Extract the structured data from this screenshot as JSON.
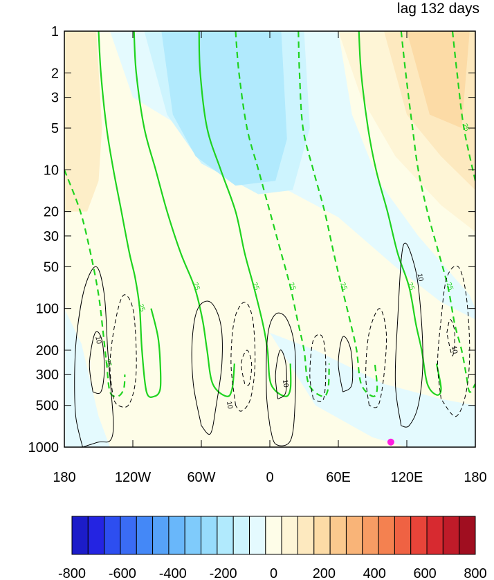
{
  "title": "lag 132 days",
  "colors": {
    "zero_line_green": "#1fd31f",
    "contour_black": "#000000",
    "marker": "#ff1ee0",
    "frame": "#000000"
  },
  "chart_data": {
    "type": "heatmap",
    "title": "lag 132 days",
    "x_axis": {
      "label": "",
      "range": [
        -180,
        180
      ],
      "ticks": [
        {
          "value": -180,
          "label": "180"
        },
        {
          "value": -120,
          "label": "120W"
        },
        {
          "value": -60,
          "label": "60W"
        },
        {
          "value": 0,
          "label": "0"
        },
        {
          "value": 60,
          "label": "60E"
        },
        {
          "value": 120,
          "label": "120E"
        },
        {
          "value": 180,
          "label": "180"
        }
      ]
    },
    "y_axis": {
      "label": "",
      "scale": "log",
      "reversed": true,
      "range": [
        1000,
        1
      ],
      "ticks": [
        {
          "value": 1,
          "label": "1"
        },
        {
          "value": 2,
          "label": "2"
        },
        {
          "value": 3,
          "label": "3"
        },
        {
          "value": 5,
          "label": "5"
        },
        {
          "value": 10,
          "label": "10"
        },
        {
          "value": 20,
          "label": "20"
        },
        {
          "value": 30,
          "label": "30"
        },
        {
          "value": 50,
          "label": "50"
        },
        {
          "value": 100,
          "label": "100"
        },
        {
          "value": 200,
          "label": "200"
        },
        {
          "value": 300,
          "label": "300"
        },
        {
          "value": 500,
          "label": "500"
        },
        {
          "value": 1000,
          "label": "1000"
        }
      ]
    },
    "colorbar": {
      "range": [
        -800,
        800
      ],
      "labels": [
        {
          "value": -800,
          "label": "-800"
        },
        {
          "value": -600,
          "label": "-600"
        },
        {
          "value": -400,
          "label": "-400"
        },
        {
          "value": -200,
          "label": "-200"
        },
        {
          "value": 0,
          "label": "0"
        },
        {
          "value": 200,
          "label": "200"
        },
        {
          "value": 400,
          "label": "400"
        },
        {
          "value": 600,
          "label": "600"
        },
        {
          "value": 800,
          "label": "800"
        }
      ],
      "colors": [
        "#1c1cc9",
        "#2424e2",
        "#2d4ef0",
        "#3a6cf4",
        "#4488f7",
        "#56a2f8",
        "#69b7fa",
        "#7fcbfb",
        "#97dcfc",
        "#b1eafd",
        "#cdf4fe",
        "#e4fafe",
        "#fefde8",
        "#fef5d6",
        "#fde9bf",
        "#fcdba6",
        "#fbc98e",
        "#f9b478",
        "#f79c64",
        "#f48150",
        "#ef6243",
        "#e84439",
        "#d72a30",
        "#bf1b29",
        "#a00e20"
      ]
    },
    "shaded_field": [
      {
        "lon": -180,
        "pressure": 2,
        "value": 120
      },
      {
        "lon": -60,
        "pressure": 3,
        "value": -180
      },
      {
        "lon": 120,
        "pressure": 3,
        "value": 130
      },
      {
        "lon": -40,
        "pressure": 100,
        "value": 20
      },
      {
        "lon": -160,
        "pressure": 300,
        "value": -20
      },
      {
        "lon": 80,
        "pressure": 300,
        "value": -20
      },
      {
        "lon": 100,
        "pressure": 1000,
        "value": 20
      }
    ],
    "green_contour_label": "25",
    "black_contour_label": "10",
    "green_contours": [
      {
        "style": "dashed",
        "points": [
          [
            -180,
            10
          ],
          [
            -166,
            20
          ],
          [
            -157,
            40
          ],
          [
            -150,
            80
          ],
          [
            -146,
            150
          ],
          [
            -143,
            250
          ],
          [
            -140,
            400
          ],
          [
            -133,
            430
          ],
          [
            -128,
            380
          ],
          [
            -127,
            300
          ]
        ]
      },
      {
        "style": "solid",
        "points": [
          [
            -150,
            1
          ],
          [
            -148,
            2
          ],
          [
            -143,
            5
          ],
          [
            -137,
            10
          ],
          [
            -130,
            20
          ],
          [
            -123,
            40
          ],
          [
            -118,
            60
          ],
          [
            -114,
            100
          ],
          [
            -112,
            200
          ],
          [
            -108,
            400
          ],
          [
            -101,
            430
          ],
          [
            -96,
            380
          ],
          [
            -96,
            250
          ],
          [
            -98,
            160
          ],
          [
            -104,
            100
          ]
        ]
      },
      {
        "style": "solid",
        "points": [
          [
            -119,
            1
          ],
          [
            -117,
            2
          ],
          [
            -110,
            5
          ],
          [
            -100,
            10
          ],
          [
            -90,
            20
          ],
          [
            -78,
            40
          ],
          [
            -66,
            70
          ],
          [
            -59,
            120
          ],
          [
            -55,
            200
          ],
          [
            -50,
            350
          ],
          [
            -38,
            430
          ],
          [
            -33,
            380
          ],
          [
            -31,
            250
          ]
        ]
      },
      {
        "style": "solid",
        "points": [
          [
            -62,
            1
          ],
          [
            -61,
            2
          ],
          [
            -55,
            5
          ],
          [
            -43,
            10
          ],
          [
            -30,
            20
          ],
          [
            -22,
            40
          ],
          [
            -14,
            70
          ],
          [
            -6,
            130
          ],
          [
            -2,
            200
          ],
          [
            1,
            350
          ],
          [
            13,
            430
          ],
          [
            18,
            380
          ],
          [
            18,
            250
          ]
        ]
      },
      {
        "style": "dashed",
        "points": [
          [
            -30,
            1
          ],
          [
            -27,
            2
          ],
          [
            -20,
            5
          ],
          [
            -10,
            10
          ],
          [
            0,
            20
          ],
          [
            10,
            40
          ],
          [
            18,
            70
          ],
          [
            25,
            130
          ],
          [
            30,
            200
          ],
          [
            34,
            350
          ],
          [
            46,
            430
          ],
          [
            51,
            380
          ],
          [
            52,
            250
          ]
        ]
      },
      {
        "style": "dashed",
        "points": [
          [
            25,
            1
          ],
          [
            26,
            2
          ],
          [
            29,
            5
          ],
          [
            38,
            10
          ],
          [
            48,
            20
          ],
          [
            56,
            40
          ],
          [
            63,
            70
          ],
          [
            71,
            130
          ],
          [
            76,
            200
          ],
          [
            80,
            350
          ],
          [
            90,
            430
          ],
          [
            94,
            380
          ],
          [
            92,
            250
          ]
        ]
      },
      {
        "style": "solid",
        "points": [
          [
            78,
            1
          ],
          [
            80,
            2
          ],
          [
            86,
            5
          ],
          [
            93,
            10
          ],
          [
            103,
            20
          ],
          [
            112,
            40
          ],
          [
            122,
            70
          ],
          [
            128,
            130
          ],
          [
            133,
            200
          ],
          [
            138,
            350
          ],
          [
            146,
            420
          ],
          [
            150,
            380
          ],
          [
            146,
            250
          ]
        ]
      },
      {
        "style": "dashed",
        "points": [
          [
            115,
            1
          ],
          [
            119,
            2
          ],
          [
            125,
            5
          ],
          [
            130,
            10
          ],
          [
            138,
            20
          ],
          [
            148,
            40
          ],
          [
            156,
            70
          ],
          [
            162,
            130
          ],
          [
            168,
            200
          ],
          [
            172,
            300
          ],
          [
            175,
            400
          ],
          [
            180,
            350
          ]
        ]
      },
      {
        "style": "dashed",
        "points": [
          [
            160,
            1
          ],
          [
            164,
            2
          ],
          [
            170,
            5
          ],
          [
            180,
            12
          ]
        ]
      }
    ],
    "black_contours": [
      {
        "style": "solid",
        "points": [
          [
            -164,
            1000
          ],
          [
            -170,
            600
          ],
          [
            -171,
            300
          ],
          [
            -169,
            150
          ],
          [
            -162,
            70
          ],
          [
            -152,
            50
          ],
          [
            -145,
            80
          ],
          [
            -142,
            200
          ],
          [
            -139,
            400
          ],
          [
            -137,
            700
          ],
          [
            -140,
            900
          ],
          [
            -150,
            920
          ],
          [
            -164,
            1000
          ]
        ]
      },
      {
        "style": "solid",
        "points": [
          [
            -155,
            400
          ],
          [
            -158,
            250
          ],
          [
            -153,
            150
          ],
          [
            -147,
            170
          ],
          [
            -145,
            280
          ],
          [
            -148,
            400
          ],
          [
            -155,
            400
          ]
        ]
      },
      {
        "style": "dashed",
        "points": [
          [
            -137,
            450
          ],
          [
            -140,
            250
          ],
          [
            -135,
            120
          ],
          [
            -128,
            80
          ],
          [
            -120,
            100
          ],
          [
            -117,
            200
          ],
          [
            -118,
            350
          ],
          [
            -124,
            500
          ],
          [
            -133,
            500
          ],
          [
            -137,
            450
          ]
        ]
      },
      {
        "style": "solid",
        "points": [
          [
            -60,
            700
          ],
          [
            -67,
            350
          ],
          [
            -68,
            170
          ],
          [
            -63,
            100
          ],
          [
            -52,
            90
          ],
          [
            -43,
            130
          ],
          [
            -42,
            250
          ],
          [
            -47,
            500
          ],
          [
            -52,
            800
          ],
          [
            -60,
            700
          ]
        ]
      },
      {
        "style": "dashed",
        "points": [
          [
            -30,
            500
          ],
          [
            -34,
            250
          ],
          [
            -31,
            120
          ],
          [
            -22,
            90
          ],
          [
            -15,
            120
          ],
          [
            -13,
            250
          ],
          [
            -17,
            450
          ],
          [
            -25,
            550
          ],
          [
            -30,
            500
          ]
        ]
      },
      {
        "style": "dashed",
        "points": [
          [
            -22,
            350
          ],
          [
            -25,
            250
          ],
          [
            -20,
            200
          ],
          [
            -16,
            250
          ],
          [
            -18,
            350
          ],
          [
            -22,
            350
          ]
        ]
      },
      {
        "style": "solid",
        "points": [
          [
            0,
            700
          ],
          [
            -3,
            400
          ],
          [
            -2,
            160
          ],
          [
            5,
            110
          ],
          [
            15,
            120
          ],
          [
            22,
            200
          ],
          [
            22,
            500
          ],
          [
            18,
            900
          ],
          [
            5,
            950
          ],
          [
            0,
            700
          ]
        ]
      },
      {
        "style": "solid",
        "points": [
          [
            7,
            450
          ],
          [
            5,
            300
          ],
          [
            9,
            200
          ],
          [
            14,
            250
          ],
          [
            14,
            400
          ],
          [
            7,
            450
          ]
        ]
      },
      {
        "style": "dashed",
        "points": [
          [
            38,
            450
          ],
          [
            35,
            300
          ],
          [
            38,
            170
          ],
          [
            46,
            160
          ],
          [
            49,
            250
          ],
          [
            47,
            450
          ],
          [
            38,
            450
          ]
        ]
      },
      {
        "style": "solid",
        "points": [
          [
            64,
            400
          ],
          [
            60,
            250
          ],
          [
            64,
            160
          ],
          [
            71,
            200
          ],
          [
            72,
            350
          ],
          [
            64,
            400
          ]
        ]
      },
      {
        "style": "dashed",
        "points": [
          [
            87,
            500
          ],
          [
            84,
            300
          ],
          [
            87,
            150
          ],
          [
            96,
            100
          ],
          [
            102,
            150
          ],
          [
            100,
            300
          ],
          [
            95,
            500
          ],
          [
            87,
            500
          ]
        ]
      },
      {
        "style": "solid",
        "points": [
          [
            115,
            700
          ],
          [
            110,
            350
          ],
          [
            112,
            120
          ],
          [
            117,
            35
          ],
          [
            127,
            50
          ],
          [
            132,
            100
          ],
          [
            134,
            250
          ],
          [
            130,
            500
          ],
          [
            122,
            700
          ],
          [
            115,
            700
          ]
        ]
      },
      {
        "style": "dashed",
        "points": [
          [
            150,
            450
          ],
          [
            147,
            250
          ],
          [
            150,
            120
          ],
          [
            155,
            60
          ],
          [
            165,
            50
          ],
          [
            172,
            80
          ],
          [
            175,
            200
          ],
          [
            172,
            400
          ],
          [
            163,
            600
          ],
          [
            150,
            450
          ]
        ]
      },
      {
        "style": "dashed",
        "points": [
          [
            155,
            150
          ],
          [
            158,
            120
          ],
          [
            162,
            150
          ],
          [
            160,
            220
          ],
          [
            155,
            150
          ]
        ]
      }
    ],
    "marker": {
      "lon": 106,
      "pressure": 920
    }
  }
}
